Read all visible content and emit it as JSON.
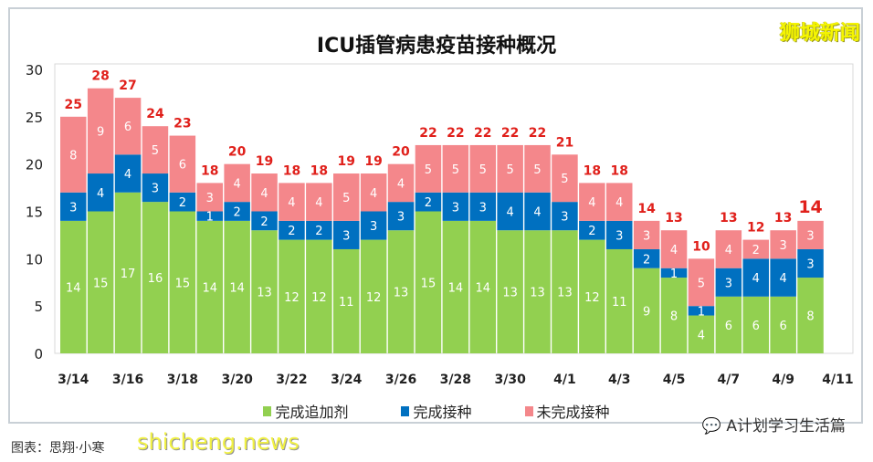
{
  "brand": "狮城新闻",
  "footer": {
    "wechat": "A计划学习生活篇",
    "credit": "图表：思翔·小寒",
    "watermark": "shicheng.news"
  },
  "colors": {
    "booster": "#92d050",
    "vaccinated": "#0070c0",
    "unvaccinated": "#f4878b",
    "total_label": "#e0201b"
  },
  "chart_data": {
    "type": "bar",
    "stacked": true,
    "title": "ICU插管病患疫苗接种概况",
    "categories": [
      "3/14",
      "3/15",
      "3/16",
      "3/17",
      "3/18",
      "3/19",
      "3/20",
      "3/21",
      "3/22",
      "3/23",
      "3/24",
      "3/25",
      "3/26",
      "3/27",
      "3/28",
      "3/29",
      "3/30",
      "3/31",
      "4/1",
      "4/2",
      "4/3",
      "4/4",
      "4/5",
      "4/6",
      "4/7",
      "4/8",
      "4/9",
      "4/10"
    ],
    "xticks": [
      "3/14",
      "3/16",
      "3/18",
      "3/20",
      "3/22",
      "3/24",
      "3/26",
      "3/28",
      "3/30",
      "4/1",
      "4/3",
      "4/5",
      "4/7",
      "4/9",
      "4/11"
    ],
    "yticks": [
      0,
      5,
      10,
      15,
      20,
      25,
      30
    ],
    "ylim": [
      0,
      30
    ],
    "grid": false,
    "legend_position": "bottom",
    "series": [
      {
        "name": "完成追加剂",
        "values": [
          14,
          15,
          17,
          16,
          15,
          14,
          14,
          13,
          12,
          12,
          11,
          12,
          13,
          15,
          14,
          14,
          13,
          13,
          13,
          12,
          11,
          9,
          8,
          4,
          6,
          6,
          6,
          8
        ]
      },
      {
        "name": "完成接种",
        "values": [
          3,
          4,
          4,
          3,
          2,
          1,
          2,
          2,
          2,
          2,
          3,
          3,
          3,
          2,
          3,
          3,
          4,
          4,
          3,
          2,
          3,
          2,
          1,
          1,
          3,
          4,
          4,
          3
        ]
      },
      {
        "name": "未完成接种",
        "values": [
          8,
          9,
          6,
          5,
          6,
          3,
          4,
          4,
          4,
          4,
          5,
          4,
          4,
          5,
          5,
          5,
          5,
          5,
          5,
          4,
          4,
          3,
          4,
          5,
          4,
          2,
          3,
          3
        ]
      }
    ],
    "totals": [
      25,
      28,
      27,
      24,
      23,
      18,
      20,
      19,
      18,
      18,
      19,
      19,
      20,
      22,
      22,
      22,
      22,
      22,
      21,
      18,
      18,
      14,
      13,
      10,
      13,
      12,
      13,
      14
    ]
  }
}
